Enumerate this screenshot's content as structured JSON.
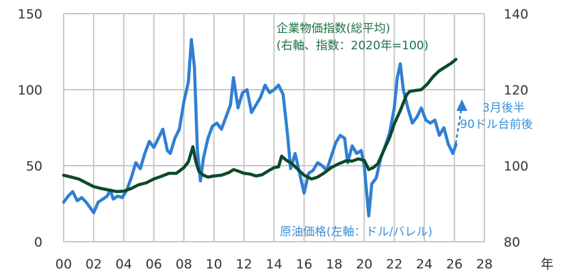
{
  "chart_data": {
    "type": "line",
    "title": "",
    "xlabel": "年",
    "x_ticks": [
      "00",
      "02",
      "04",
      "06",
      "08",
      "10",
      "12",
      "14",
      "16",
      "18",
      "20",
      "22",
      "24",
      "26",
      "28"
    ],
    "xlim": [
      2000,
      2028
    ],
    "y_left": {
      "label": "原油価格(左軸：ドル/バレル)",
      "ticks": [
        "0",
        "50",
        "100",
        "150"
      ],
      "lim": [
        0,
        150
      ]
    },
    "y_right": {
      "label": "企業物価指数(総平均)(右軸、指数：2020年=100)",
      "ticks": [
        "80",
        "100",
        "120",
        "140"
      ],
      "lim": [
        80,
        140
      ]
    },
    "grid": true,
    "series": [
      {
        "name": "原油価格(左軸：ドル/バレル)",
        "axis": "left",
        "color": "#2f7fd3",
        "x": [
          2000.0,
          2000.3,
          2000.6,
          2000.9,
          2001.2,
          2001.5,
          2001.8,
          2002.0,
          2002.3,
          2002.6,
          2002.9,
          2003.1,
          2003.3,
          2003.6,
          2003.9,
          2004.2,
          2004.5,
          2004.8,
          2005.1,
          2005.4,
          2005.7,
          2006.0,
          2006.3,
          2006.6,
          2006.9,
          2007.1,
          2007.4,
          2007.7,
          2008.0,
          2008.3,
          2008.5,
          2008.7,
          2008.9,
          2009.1,
          2009.3,
          2009.6,
          2009.9,
          2010.2,
          2010.5,
          2010.8,
          2011.1,
          2011.3,
          2011.6,
          2011.9,
          2012.2,
          2012.5,
          2012.8,
          2013.1,
          2013.4,
          2013.7,
          2014.0,
          2014.3,
          2014.6,
          2014.9,
          2015.1,
          2015.4,
          2015.7,
          2016.0,
          2016.3,
          2016.6,
          2016.9,
          2017.2,
          2017.5,
          2017.8,
          2018.1,
          2018.4,
          2018.7,
          2018.9,
          2019.2,
          2019.5,
          2019.8,
          2020.0,
          2020.3,
          2020.5,
          2020.8,
          2021.1,
          2021.4,
          2021.7,
          2022.0,
          2022.2,
          2022.4,
          2022.6,
          2022.9,
          2023.2,
          2023.5,
          2023.8,
          2024.1,
          2024.4,
          2024.7,
          2025.0,
          2025.3,
          2025.6,
          2025.9,
          2026.1
        ],
        "values": [
          26,
          30,
          33,
          27,
          29,
          26,
          22,
          19,
          26,
          28,
          30,
          34,
          28,
          30,
          29,
          34,
          42,
          52,
          48,
          58,
          66,
          62,
          68,
          74,
          60,
          58,
          68,
          74,
          92,
          105,
          133,
          115,
          60,
          40,
          55,
          68,
          76,
          78,
          74,
          82,
          90,
          108,
          88,
          98,
          100,
          85,
          90,
          95,
          103,
          98,
          100,
          103,
          97,
          70,
          48,
          58,
          45,
          32,
          45,
          47,
          52,
          50,
          47,
          56,
          65,
          70,
          68,
          52,
          63,
          58,
          60,
          50,
          17,
          38,
          42,
          55,
          63,
          72,
          88,
          108,
          117,
          100,
          88,
          78,
          82,
          88,
          80,
          78,
          80,
          70,
          75,
          64,
          58,
          64
        ],
        "annotation": {
          "text_line1": "3月後半",
          "text_line2": "90ドル台前後",
          "style": "dashed-arrow-up"
        }
      },
      {
        "name": "企業物価指数(総平均)(右軸、指数：2020年=100)",
        "axis": "right",
        "color": "#0b4a28",
        "x": [
          2000.0,
          2000.5,
          2001.0,
          2001.5,
          2002.0,
          2002.5,
          2003.0,
          2003.5,
          2004.0,
          2004.5,
          2005.0,
          2005.5,
          2006.0,
          2006.5,
          2007.0,
          2007.5,
          2008.0,
          2008.3,
          2008.6,
          2008.8,
          2009.0,
          2009.3,
          2009.6,
          2010.0,
          2010.5,
          2011.0,
          2011.3,
          2011.6,
          2012.0,
          2012.4,
          2012.8,
          2013.2,
          2013.6,
          2014.0,
          2014.3,
          2014.5,
          2014.8,
          2015.2,
          2015.6,
          2016.0,
          2016.5,
          2016.9,
          2017.3,
          2017.8,
          2018.3,
          2018.8,
          2019.2,
          2019.6,
          2020.0,
          2020.3,
          2020.6,
          2020.9,
          2021.3,
          2021.7,
          2022.0,
          2022.4,
          2022.8,
          2023.0,
          2023.4,
          2023.8,
          2024.2,
          2024.6,
          2025.0,
          2025.4,
          2025.8,
          2026.1
        ],
        "values": [
          97.5,
          97,
          96.5,
          95.5,
          94.5,
          94,
          93.6,
          93.2,
          93.3,
          94,
          95,
          95.5,
          96.5,
          97.2,
          98,
          98,
          99.5,
          101,
          105,
          101,
          98.5,
          97.5,
          97,
          97.3,
          97.5,
          98.2,
          99,
          98.6,
          98,
          97.8,
          97.3,
          97.6,
          98.6,
          99.5,
          99.7,
          102.5,
          101.5,
          100.5,
          99,
          97.5,
          96.5,
          97,
          98,
          99.5,
          100.5,
          101.3,
          101.2,
          101.8,
          101.4,
          99,
          99.5,
          100.5,
          104,
          107.5,
          111,
          114.5,
          118.5,
          119.5,
          119.8,
          120,
          121.5,
          123.5,
          125,
          126,
          127,
          128
        ]
      }
    ],
    "legend": "inline-labels"
  },
  "labels": {
    "cgpi_line1": "企業物価指数(総平均)",
    "cgpi_line2": "(右軸、指数：2020年=100)",
    "oil": "原油価格(左軸：ドル/バレル)",
    "note_line1": "3月後半",
    "note_line2": "90ドル台前後",
    "year_unit": "年"
  }
}
